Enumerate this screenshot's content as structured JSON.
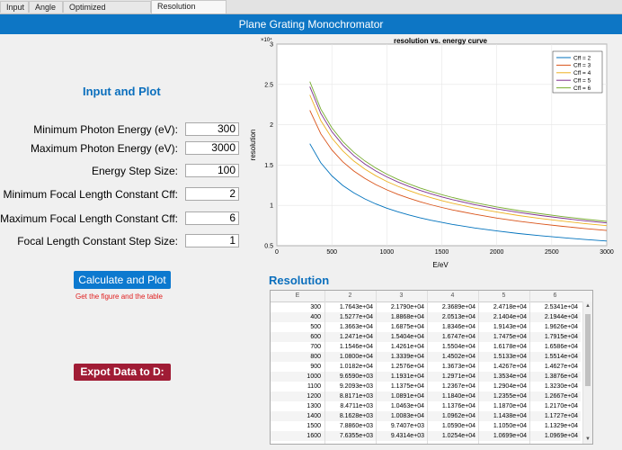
{
  "tabs": [
    {
      "label": "Input"
    },
    {
      "label": "Angle"
    },
    {
      "label": "Optimized Resolution"
    },
    {
      "label": "Resolution Figure"
    }
  ],
  "header_title": "Plane Grating Monochromator",
  "input_section": {
    "title": "Input and Plot",
    "fields": [
      {
        "label": "Minimum Photon Energy (eV):",
        "value": "300"
      },
      {
        "label": "Maximum Photon Energy (eV):",
        "value": "3000"
      },
      {
        "label": "Energy Step Size:",
        "value": "100"
      },
      {
        "label": "Minimum Focal Length Constant Cff:",
        "value": "2"
      },
      {
        "label": "Maximum Focal Length Constant Cff:",
        "value": "6"
      },
      {
        "label": "Focal Length Constant Step Size:",
        "value": "1"
      }
    ]
  },
  "buttons": {
    "calculate": "Calculate and Plot",
    "calculate_hint": "Get the figure and the table",
    "export": "Expot Data to D:"
  },
  "results_title": "Resolution",
  "table": {
    "headers": [
      "E",
      "2",
      "3",
      "4",
      "5",
      "6"
    ],
    "rows": [
      [
        "300",
        "1.7643e+04",
        "2.1790e+04",
        "2.3689e+04",
        "2.4718e+04",
        "2.5341e+04"
      ],
      [
        "400",
        "1.5277e+04",
        "1.8868e+04",
        "2.0513e+04",
        "2.1404e+04",
        "2.1944e+04"
      ],
      [
        "500",
        "1.3663e+04",
        "1.6875e+04",
        "1.8346e+04",
        "1.9143e+04",
        "1.9626e+04"
      ],
      [
        "600",
        "1.2471e+04",
        "1.5404e+04",
        "1.6747e+04",
        "1.7475e+04",
        "1.7915e+04"
      ],
      [
        "700",
        "1.1546e+04",
        "1.4261e+04",
        "1.5504e+04",
        "1.6178e+04",
        "1.6586e+04"
      ],
      [
        "800",
        "1.0800e+04",
        "1.3339e+04",
        "1.4502e+04",
        "1.5133e+04",
        "1.5514e+04"
      ],
      [
        "900",
        "1.0182e+04",
        "1.2576e+04",
        "1.3673e+04",
        "1.4267e+04",
        "1.4627e+04"
      ],
      [
        "1000",
        "9.6590e+03",
        "1.1931e+04",
        "1.2971e+04",
        "1.3534e+04",
        "1.3876e+04"
      ],
      [
        "1100",
        "9.2093e+03",
        "1.1375e+04",
        "1.2367e+04",
        "1.2904e+04",
        "1.3230e+04"
      ],
      [
        "1200",
        "8.8171e+03",
        "1.0891e+04",
        "1.1840e+04",
        "1.2355e+04",
        "1.2667e+04"
      ],
      [
        "1300",
        "8.4711e+03",
        "1.0463e+04",
        "1.1376e+04",
        "1.1870e+04",
        "1.2170e+04"
      ],
      [
        "1400",
        "8.1628e+03",
        "1.0083e+04",
        "1.0962e+04",
        "1.1438e+04",
        "1.1727e+04"
      ],
      [
        "1500",
        "7.8860e+03",
        "9.7407e+03",
        "1.0590e+04",
        "1.1050e+04",
        "1.1329e+04"
      ],
      [
        "1600",
        "7.6355e+03",
        "9.4314e+03",
        "1.0254e+04",
        "1.0699e+04",
        "1.0969e+04"
      ]
    ]
  },
  "chart_data": {
    "type": "line",
    "title": "resolution vs. energy curve",
    "xlabel": "E/eV",
    "ylabel": "resolution",
    "y_multiplier": "×10⁴",
    "xlim": [
      0,
      3000
    ],
    "ylim": [
      0.5,
      3
    ],
    "xticks": [
      0,
      500,
      1000,
      1500,
      2000,
      2500,
      3000
    ],
    "yticks": [
      0.5,
      1,
      1.5,
      2,
      2.5,
      3
    ],
    "legend_position": "top-right",
    "x": [
      300,
      400,
      500,
      600,
      700,
      800,
      900,
      1000,
      1100,
      1200,
      1300,
      1400,
      1500,
      1600,
      1800,
      2000,
      2200,
      2400,
      2600,
      2800,
      3000
    ],
    "series": [
      {
        "name": "Cff = 2",
        "color": "#0072bd",
        "values": [
          1.7643,
          1.5277,
          1.3663,
          1.2471,
          1.1546,
          1.08,
          1.0182,
          0.9659,
          0.92093,
          0.88171,
          0.84711,
          0.81628,
          0.7886,
          0.76355,
          0.72,
          0.683,
          0.651,
          0.624,
          0.599,
          0.577,
          0.558
        ]
      },
      {
        "name": "Cff = 3",
        "color": "#d95319",
        "values": [
          2.179,
          1.8868,
          1.6875,
          1.5404,
          1.4261,
          1.3339,
          1.2576,
          1.1931,
          1.1375,
          1.0891,
          1.0463,
          1.0083,
          0.97407,
          0.94314,
          0.889,
          0.843,
          0.804,
          0.77,
          0.74,
          0.713,
          0.689
        ]
      },
      {
        "name": "Cff = 4",
        "color": "#edb120",
        "values": [
          2.3689,
          2.0513,
          1.8346,
          1.6747,
          1.5504,
          1.4502,
          1.3673,
          1.2971,
          1.2367,
          1.184,
          1.1376,
          1.0962,
          1.059,
          1.0254,
          0.967,
          0.917,
          0.874,
          0.837,
          0.805,
          0.775,
          0.749
        ]
      },
      {
        "name": "Cff = 5",
        "color": "#7e2f8e",
        "values": [
          2.4718,
          2.1404,
          1.9143,
          1.7475,
          1.6178,
          1.5133,
          1.4267,
          1.3534,
          1.2904,
          1.2355,
          1.187,
          1.1438,
          1.105,
          1.0699,
          1.009,
          0.957,
          0.912,
          0.874,
          0.84,
          0.809,
          0.782
        ]
      },
      {
        "name": "Cff = 6",
        "color": "#77ac30",
        "values": [
          2.5341,
          2.1944,
          1.9626,
          1.7915,
          1.6586,
          1.5514,
          1.4627,
          1.3876,
          1.323,
          1.2667,
          1.217,
          1.1727,
          1.1329,
          1.0969,
          1.034,
          0.981,
          0.935,
          0.896,
          0.861,
          0.829,
          0.801
        ]
      }
    ]
  }
}
